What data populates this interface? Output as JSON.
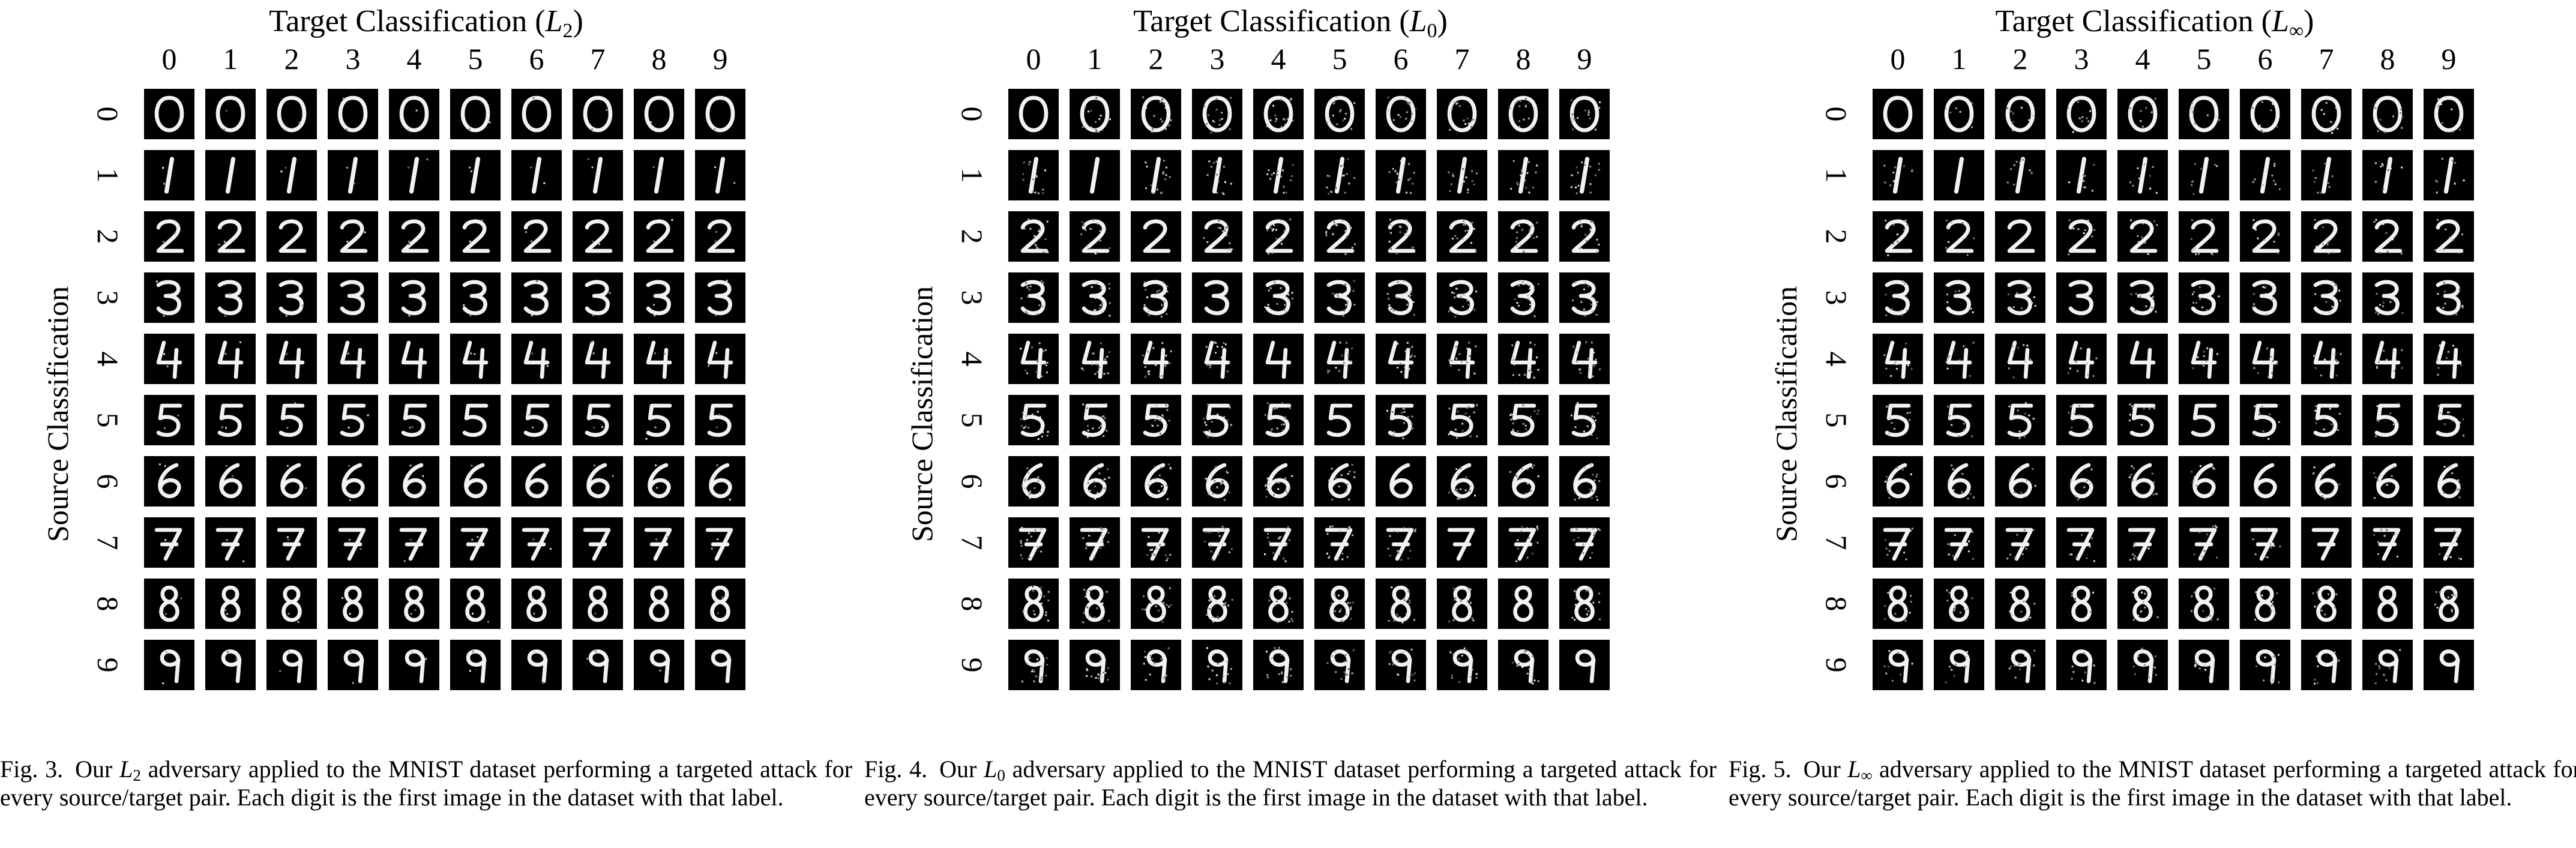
{
  "figures": [
    {
      "title_prefix": "Target Classification (",
      "norm_symbol": "L",
      "norm_subscript": "2",
      "title_suffix": ")",
      "ylabel": "Source Classification",
      "col_labels": [
        "0",
        "1",
        "2",
        "3",
        "4",
        "5",
        "6",
        "7",
        "8",
        "9"
      ],
      "row_labels": [
        "0",
        "1",
        "2",
        "3",
        "4",
        "5",
        "6",
        "7",
        "8",
        "9"
      ],
      "caption_fig": "Fig. 3.",
      "caption_pre": "Our",
      "caption_post": "adversary applied to the MNIST dataset performing a targeted attack for every source/target pair. Each digit is the first image in the dataset with that label.",
      "noise_level": 0.1
    },
    {
      "title_prefix": "Target Classification (",
      "norm_symbol": "L",
      "norm_subscript": "0",
      "title_suffix": ")",
      "ylabel": "Source Classification",
      "col_labels": [
        "0",
        "1",
        "2",
        "3",
        "4",
        "5",
        "6",
        "7",
        "8",
        "9"
      ],
      "row_labels": [
        "0",
        "1",
        "2",
        "3",
        "4",
        "5",
        "6",
        "7",
        "8",
        "9"
      ],
      "caption_fig": "Fig. 4.",
      "caption_pre": "Our",
      "caption_post": "adversary applied to the MNIST dataset performing a targeted attack for every source/target pair. Each digit is the first image in the dataset with that label.",
      "noise_level": 0.7
    },
    {
      "title_prefix": "Target Classification (",
      "norm_symbol": "L",
      "norm_subscript": "∞",
      "title_suffix": ")",
      "ylabel": "Source Classification",
      "col_labels": [
        "0",
        "1",
        "2",
        "3",
        "4",
        "5",
        "6",
        "7",
        "8",
        "9"
      ],
      "row_labels": [
        "0",
        "1",
        "2",
        "3",
        "4",
        "5",
        "6",
        "7",
        "8",
        "9"
      ],
      "caption_fig": "Fig. 5.",
      "caption_pre": "Our",
      "caption_post": "adversary applied to the MNIST dataset performing a targeted attack for every source/target pair. Each digit is the first image in the dataset with that label.",
      "noise_level": 0.4
    }
  ]
}
